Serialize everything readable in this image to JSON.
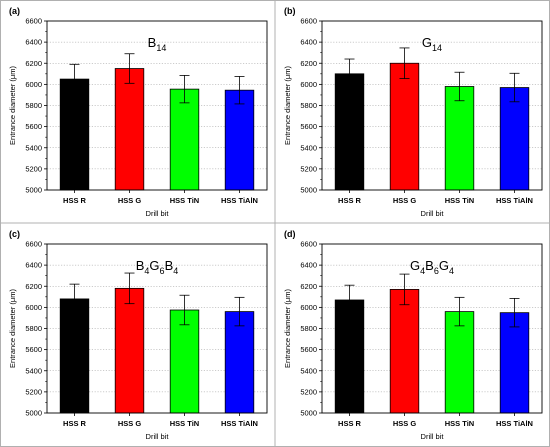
{
  "chart_data": [
    {
      "type": "bar",
      "panel_label": "(a)",
      "title": {
        "base": "B",
        "sub": "14"
      },
      "title_parts": [
        {
          "t": "B",
          "sub": false
        },
        {
          "t": "14",
          "sub": true
        }
      ],
      "categories": [
        "HSS R",
        "HSS G",
        "HSS TiN",
        "HSS TiAlN"
      ],
      "values": [
        6050,
        6150,
        5955,
        5945
      ],
      "errors": [
        140,
        140,
        130,
        130
      ],
      "colors": [
        "#000000",
        "#ff0000",
        "#00ff00",
        "#0000ff"
      ],
      "xlabel": "Drill bit",
      "ylabel": "Entrance diameter (μm)",
      "ylim": [
        5000,
        6600
      ],
      "yticks": [
        5000,
        5200,
        5400,
        5600,
        5800,
        6000,
        6200,
        6400,
        6600
      ],
      "grid": "horizontal-dotted"
    },
    {
      "type": "bar",
      "panel_label": "(b)",
      "title_parts": [
        {
          "t": "G",
          "sub": false
        },
        {
          "t": "14",
          "sub": true
        }
      ],
      "categories": [
        "HSS R",
        "HSS G",
        "HSS TiN",
        "HSS TiAlN"
      ],
      "values": [
        6100,
        6200,
        5980,
        5970
      ],
      "errors": [
        140,
        145,
        135,
        135
      ],
      "colors": [
        "#000000",
        "#ff0000",
        "#00ff00",
        "#0000ff"
      ],
      "xlabel": "Drill bit",
      "ylabel": "Entrance diameter (μm)",
      "ylim": [
        5000,
        6600
      ],
      "yticks": [
        5000,
        5200,
        5400,
        5600,
        5800,
        6000,
        6200,
        6400,
        6600
      ],
      "grid": "horizontal-dotted"
    },
    {
      "type": "bar",
      "panel_label": "(c)",
      "title_parts": [
        {
          "t": "B",
          "sub": false
        },
        {
          "t": "4",
          "sub": true
        },
        {
          "t": "G",
          "sub": false
        },
        {
          "t": "6",
          "sub": true
        },
        {
          "t": "B",
          "sub": false
        },
        {
          "t": "4",
          "sub": true
        }
      ],
      "categories": [
        "HSS R",
        "HSS G",
        "HSS TiN",
        "HSS TiAlN"
      ],
      "values": [
        6080,
        6180,
        5975,
        5960
      ],
      "errors": [
        140,
        145,
        140,
        135
      ],
      "colors": [
        "#000000",
        "#ff0000",
        "#00ff00",
        "#0000ff"
      ],
      "xlabel": "Drill bit",
      "ylabel": "Entrance diameter (μm)",
      "ylim": [
        5000,
        6600
      ],
      "yticks": [
        5000,
        5200,
        5400,
        5600,
        5800,
        6000,
        6200,
        6400,
        6600
      ],
      "grid": "horizontal-dotted"
    },
    {
      "type": "bar",
      "panel_label": "(d)",
      "title_parts": [
        {
          "t": "G",
          "sub": false
        },
        {
          "t": "4",
          "sub": true
        },
        {
          "t": "B",
          "sub": false
        },
        {
          "t": "6",
          "sub": true
        },
        {
          "t": "G",
          "sub": false
        },
        {
          "t": "4",
          "sub": true
        }
      ],
      "categories": [
        "HSS R",
        "HSS G",
        "HSS TiN",
        "HSS TiAlN"
      ],
      "values": [
        6070,
        6170,
        5960,
        5950
      ],
      "errors": [
        140,
        145,
        135,
        135
      ],
      "colors": [
        "#000000",
        "#ff0000",
        "#00ff00",
        "#0000ff"
      ],
      "xlabel": "Drill bit",
      "ylabel": "Entrance diameter (μm)",
      "ylim": [
        5000,
        6600
      ],
      "yticks": [
        5000,
        5200,
        5400,
        5600,
        5800,
        6000,
        6200,
        6400,
        6600
      ],
      "grid": "horizontal-dotted"
    }
  ]
}
